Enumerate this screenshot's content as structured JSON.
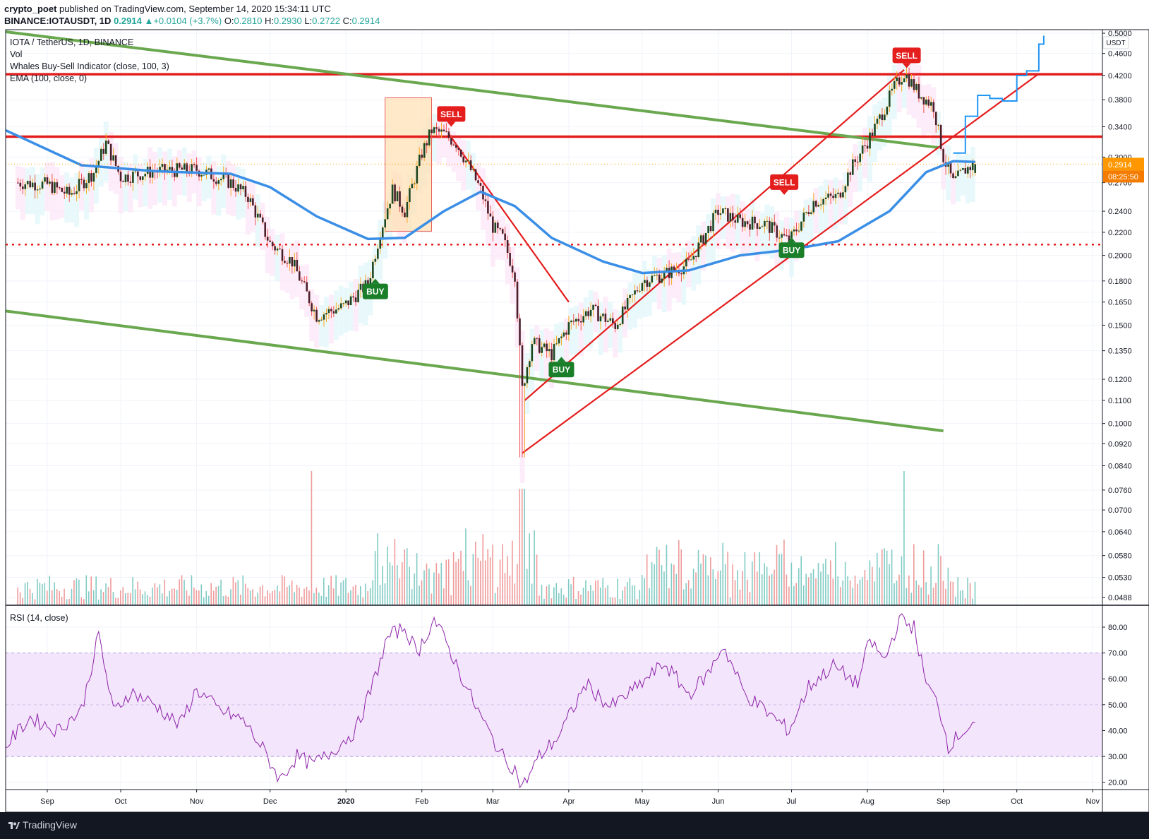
{
  "header": {
    "author": "crypto_poet",
    "published_text": "published on TradingView.com, September 14, 2020 15:34:11 UTC",
    "symbol": "BINANCE:IOTAUSDT, 1D",
    "last": "0.2914",
    "change": "+0.0104 (+3.7%)",
    "o_label": "O:",
    "o": "0.2810",
    "h_label": "H:",
    "h": "0.2930",
    "l_label": "L:",
    "l": "0.2722",
    "c_label": "C:",
    "c": "0.2914"
  },
  "indicators": {
    "title": "IOTA / TetherUS, 1D, BINANCE",
    "vol": "Vol",
    "whales": "Whales Buy-Sell Indicator (close, 100, 3)",
    "ema": "EMA (100, close, 0)",
    "rsi": "RSI (14, close)"
  },
  "footer": {
    "brand": "TradingView"
  },
  "colors": {
    "bull": "#26a69a",
    "bear": "#ef5350",
    "candle_body": "#4a1f2a",
    "ema": "#3a8ee6",
    "resistance": "#e41d1d",
    "channel": "#6aa84f",
    "rsi": "#8e24aa",
    "rsi_band": "#f3e5fb",
    "buy": "#1b7f2a",
    "sell": "#e41d1d",
    "price_badge": "#ff9800"
  },
  "chart_data": {
    "type": "candlestick",
    "symbol": "IOTA / TetherUS, 1D, BINANCE",
    "price_axis": {
      "unit": "USDT",
      "scale": "log",
      "ticks": [
        "0.5000",
        "0.4600",
        "0.4200",
        "0.3800",
        "0.3400",
        "0.3000",
        "0.2700",
        "0.2400",
        "0.2200",
        "0.2000",
        "0.1800",
        "0.1650",
        "0.1500",
        "0.1350",
        "0.1200",
        "0.1100",
        "0.1000",
        "0.0920",
        "0.0840",
        "0.0760",
        "0.0700",
        "0.0640",
        "0.0580",
        "0.0530",
        "0.0488"
      ],
      "last_price": "0.2914",
      "countdown": "08:25:50"
    },
    "time_axis": {
      "ticks": [
        "Sep",
        "Oct",
        "Nov",
        "Dec",
        "2020",
        "Feb",
        "Mar",
        "Apr",
        "May",
        "Jun",
        "Jul",
        "Aug",
        "Sep",
        "Oct",
        "Nov"
      ]
    },
    "close_path": [
      [
        "2019-08-20",
        0.27
      ],
      [
        "2019-09-01",
        0.268
      ],
      [
        "2019-09-10",
        0.257
      ],
      [
        "2019-09-20",
        0.282
      ],
      [
        "2019-09-25",
        0.318
      ],
      [
        "2019-10-01",
        0.276
      ],
      [
        "2019-10-15",
        0.283
      ],
      [
        "2019-11-01",
        0.285
      ],
      [
        "2019-11-15",
        0.27
      ],
      [
        "2019-11-22",
        0.255
      ],
      [
        "2019-12-01",
        0.21
      ],
      [
        "2019-12-10",
        0.195
      ],
      [
        "2019-12-20",
        0.156
      ],
      [
        "2019-12-31",
        0.162
      ],
      [
        "2020-01-10",
        0.178
      ],
      [
        "2020-01-15",
        0.22
      ],
      [
        "2020-01-20",
        0.262
      ],
      [
        "2020-01-25",
        0.24
      ],
      [
        "2020-02-01",
        0.305
      ],
      [
        "2020-02-05",
        0.335
      ],
      [
        "2020-02-10",
        0.33
      ],
      [
        "2020-02-15",
        0.318
      ],
      [
        "2020-02-20",
        0.29
      ],
      [
        "2020-02-25",
        0.262
      ],
      [
        "2020-03-01",
        0.225
      ],
      [
        "2020-03-05",
        0.215
      ],
      [
        "2020-03-10",
        0.185
      ],
      [
        "2020-03-13",
        0.115
      ],
      [
        "2020-03-17",
        0.14
      ],
      [
        "2020-03-25",
        0.133
      ],
      [
        "2020-04-01",
        0.15
      ],
      [
        "2020-04-10",
        0.16
      ],
      [
        "2020-04-20",
        0.15
      ],
      [
        "2020-05-01",
        0.18
      ],
      [
        "2020-05-10",
        0.185
      ],
      [
        "2020-05-20",
        0.193
      ],
      [
        "2020-06-01",
        0.24
      ],
      [
        "2020-06-10",
        0.23
      ],
      [
        "2020-06-20",
        0.228
      ],
      [
        "2020-06-30",
        0.212
      ],
      [
        "2020-07-10",
        0.25
      ],
      [
        "2020-07-20",
        0.255
      ],
      [
        "2020-07-25",
        0.285
      ],
      [
        "2020-08-01",
        0.32
      ],
      [
        "2020-08-05",
        0.345
      ],
      [
        "2020-08-12",
        0.4
      ],
      [
        "2020-08-16",
        0.425
      ],
      [
        "2020-08-22",
        0.39
      ],
      [
        "2020-08-28",
        0.37
      ],
      [
        "2020-09-01",
        0.3
      ],
      [
        "2020-09-05",
        0.27
      ],
      [
        "2020-09-10",
        0.285
      ],
      [
        "2020-09-14",
        0.2914
      ]
    ],
    "ema_100": [
      [
        "2019-08-15",
        0.335
      ],
      [
        "2019-09-15",
        0.29
      ],
      [
        "2019-10-15",
        0.283
      ],
      [
        "2019-11-15",
        0.28
      ],
      [
        "2019-12-01",
        0.265
      ],
      [
        "2019-12-20",
        0.235
      ],
      [
        "2020-01-10",
        0.214
      ],
      [
        "2020-01-25",
        0.215
      ],
      [
        "2020-02-10",
        0.24
      ],
      [
        "2020-02-25",
        0.26
      ],
      [
        "2020-03-10",
        0.245
      ],
      [
        "2020-03-25",
        0.215
      ],
      [
        "2020-04-15",
        0.195
      ],
      [
        "2020-05-01",
        0.186
      ],
      [
        "2020-05-20",
        0.188
      ],
      [
        "2020-06-10",
        0.2
      ],
      [
        "2020-07-01",
        0.205
      ],
      [
        "2020-07-20",
        0.212
      ],
      [
        "2020-08-10",
        0.24
      ],
      [
        "2020-08-25",
        0.282
      ],
      [
        "2020-09-05",
        0.295
      ],
      [
        "2020-09-14",
        0.294
      ]
    ],
    "horizontal_levels": [
      {
        "price": 0.4222,
        "style": "solid",
        "color": "red"
      },
      {
        "price": 0.3263,
        "style": "solid",
        "color": "red"
      },
      {
        "price": 0.2092,
        "style": "dotted",
        "color": "red"
      }
    ],
    "trendlines": [
      {
        "color": "green",
        "from": [
          "2019-08-15",
          0.503
        ],
        "to": [
          "2020-08-30",
          0.312
        ]
      },
      {
        "color": "green",
        "from": [
          "2019-08-15",
          0.159
        ],
        "to": [
          "2020-09-01",
          0.097
        ]
      },
      {
        "color": "red",
        "from": [
          "2020-03-13",
          0.0885
        ],
        "to": [
          "2020-10-10",
          0.423
        ]
      },
      {
        "color": "red",
        "from": [
          "2020-03-14",
          0.11
        ],
        "to": [
          "2020-08-16",
          0.43
        ]
      },
      {
        "color": "red",
        "from": [
          "2020-02-12",
          0.33
        ],
        "to": [
          "2020-04-01",
          0.165
        ]
      }
    ],
    "projection": [
      [
        "2020-09-05",
        0.305
      ],
      [
        "2020-09-10",
        0.355
      ],
      [
        "2020-09-15",
        0.387
      ],
      [
        "2020-09-20",
        0.382
      ],
      [
        "2020-09-25",
        0.378
      ],
      [
        "2020-10-01",
        0.42
      ],
      [
        "2020-10-05",
        0.428
      ],
      [
        "2020-10-10",
        0.478
      ],
      [
        "2020-10-12",
        0.495
      ]
    ],
    "signals": [
      {
        "label": "BUY",
        "date": "2020-01-13",
        "price": 0.178
      },
      {
        "label": "SELL",
        "date": "2020-02-13",
        "price": 0.347
      },
      {
        "label": "BUY",
        "date": "2020-03-29",
        "price": 0.129
      },
      {
        "label": "SELL",
        "date": "2020-06-28",
        "price": 0.262
      },
      {
        "label": "BUY",
        "date": "2020-07-01",
        "price": 0.211
      },
      {
        "label": "SELL",
        "date": "2020-08-17",
        "price": 0.442
      }
    ],
    "volume_unlabeled": true,
    "rsi": {
      "length": 14,
      "ticks": [
        "80.00",
        "70.00",
        "60.00",
        "50.00",
        "40.00",
        "30.00",
        "20.00"
      ],
      "band": [
        30,
        70
      ],
      "values": [
        [
          "2019-08-15",
          34
        ],
        [
          "2019-08-25",
          45
        ],
        [
          "2019-09-05",
          40
        ],
        [
          "2019-09-15",
          48
        ],
        [
          "2019-09-22",
          77
        ],
        [
          "2019-09-28",
          47
        ],
        [
          "2019-10-05",
          55
        ],
        [
          "2019-10-15",
          50
        ],
        [
          "2019-10-25",
          42
        ],
        [
          "2019-11-01",
          56
        ],
        [
          "2019-11-10",
          48
        ],
        [
          "2019-11-20",
          44
        ],
        [
          "2019-11-28",
          33
        ],
        [
          "2019-12-05",
          21
        ],
        [
          "2019-12-12",
          30
        ],
        [
          "2019-12-18",
          27
        ],
        [
          "2019-12-24",
          30
        ],
        [
          "2019-12-31",
          36
        ],
        [
          "2020-01-05",
          40
        ],
        [
          "2020-01-12",
          58
        ],
        [
          "2020-01-18",
          76
        ],
        [
          "2020-01-25",
          80
        ],
        [
          "2020-01-30",
          70
        ],
        [
          "2020-02-06",
          83
        ],
        [
          "2020-02-12",
          72
        ],
        [
          "2020-02-20",
          55
        ],
        [
          "2020-02-28",
          40
        ],
        [
          "2020-03-05",
          30
        ],
        [
          "2020-03-10",
          25
        ],
        [
          "2020-03-13",
          18
        ],
        [
          "2020-03-20",
          30
        ],
        [
          "2020-03-28",
          38
        ],
        [
          "2020-04-08",
          58
        ],
        [
          "2020-04-18",
          49
        ],
        [
          "2020-04-28",
          56
        ],
        [
          "2020-05-10",
          66
        ],
        [
          "2020-05-20",
          54
        ],
        [
          "2020-05-28",
          62
        ],
        [
          "2020-06-03",
          73
        ],
        [
          "2020-06-12",
          54
        ],
        [
          "2020-06-20",
          48
        ],
        [
          "2020-06-30",
          40
        ],
        [
          "2020-07-08",
          57
        ],
        [
          "2020-07-18",
          65
        ],
        [
          "2020-07-28",
          58
        ],
        [
          "2020-08-02",
          75
        ],
        [
          "2020-08-08",
          67
        ],
        [
          "2020-08-14",
          83
        ],
        [
          "2020-08-20",
          80
        ],
        [
          "2020-08-25",
          58
        ],
        [
          "2020-08-30",
          50
        ],
        [
          "2020-09-03",
          34
        ],
        [
          "2020-09-08",
          39
        ],
        [
          "2020-09-14",
          43
        ]
      ]
    }
  }
}
